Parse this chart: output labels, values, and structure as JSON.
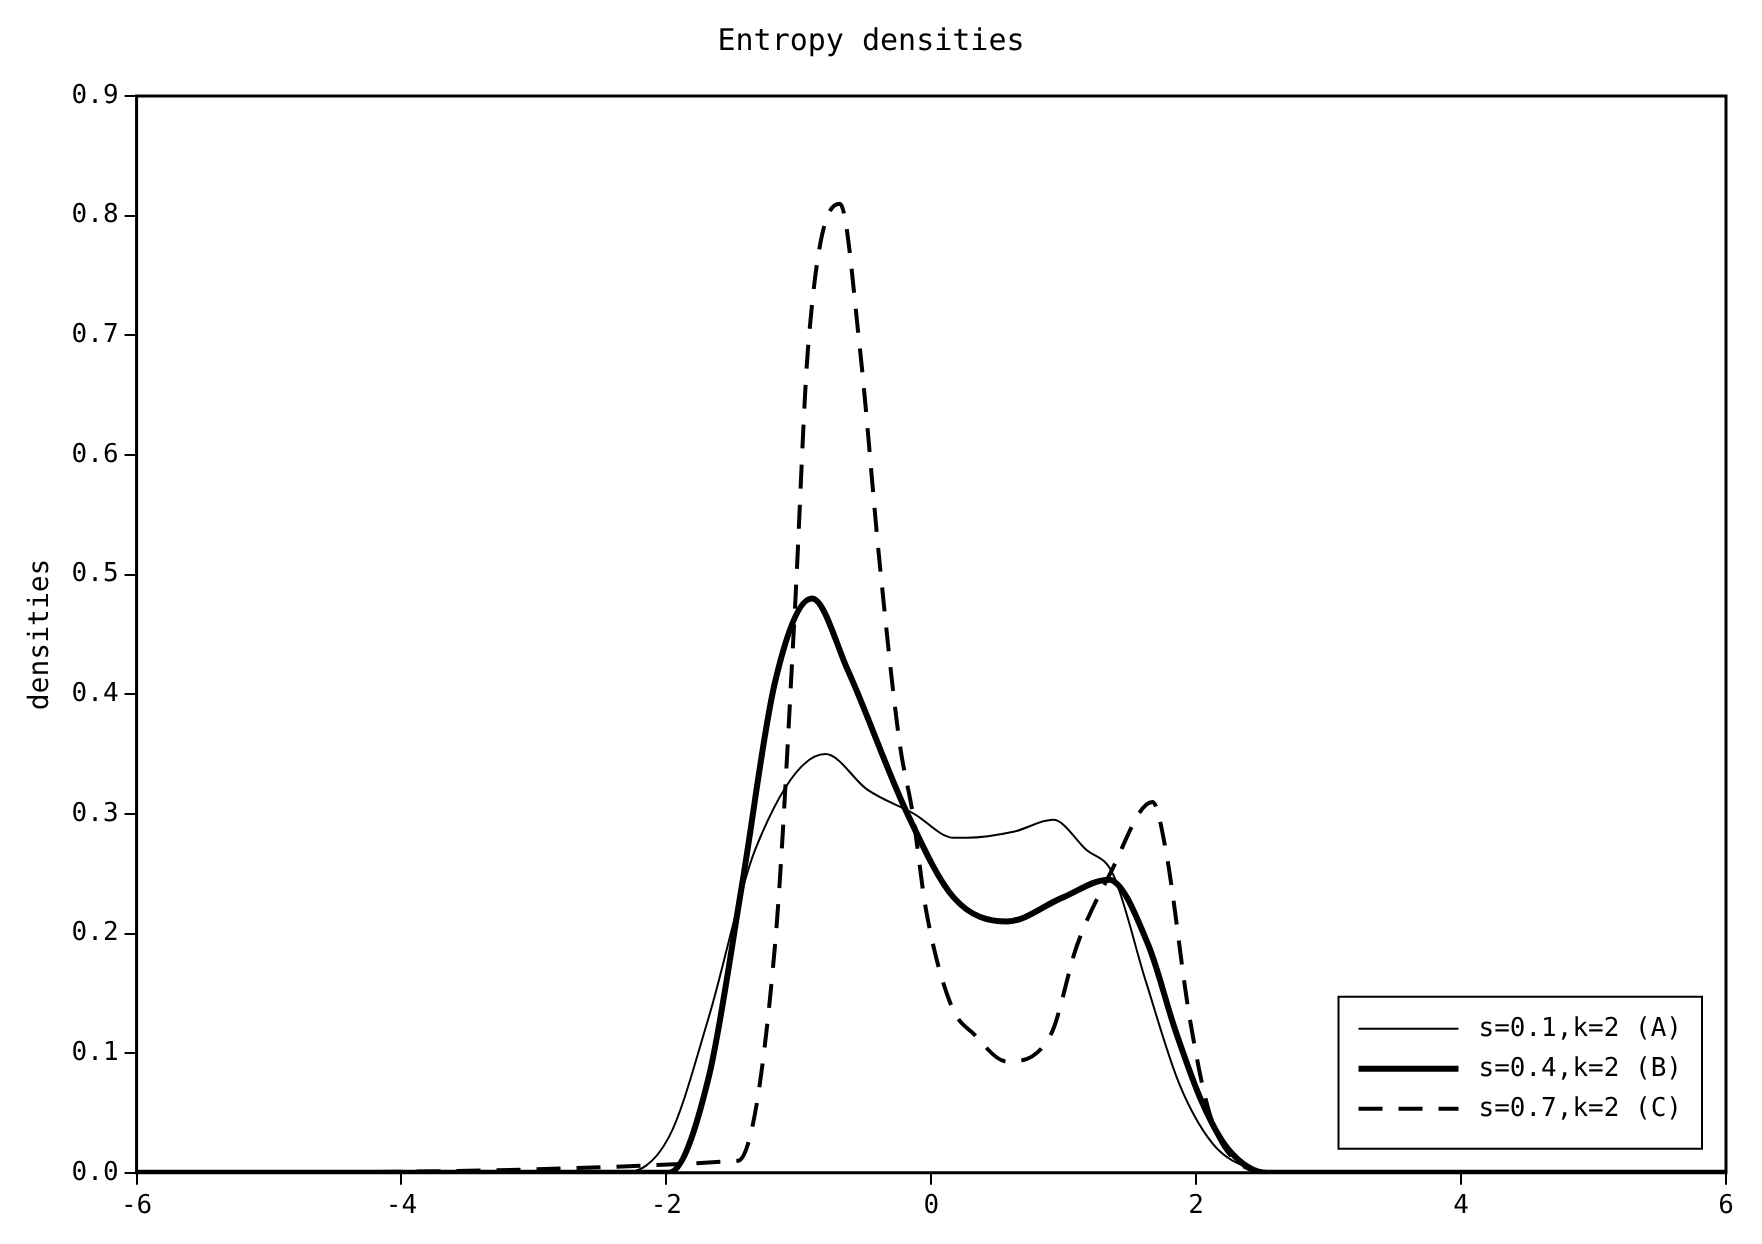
{
  "chart_data": {
    "type": "line",
    "title": "Entropy densities",
    "ylabel": "densities",
    "xlim": [
      -6,
      6
    ],
    "xticks": [
      -6,
      -4,
      -2,
      0,
      2,
      4,
      6
    ],
    "ylim": [
      0,
      0.9
    ],
    "yticks": [
      {
        "value": 0,
        "label": "0.0"
      },
      0.1,
      0.2,
      0.3,
      0.4,
      0.5,
      0.6,
      0.7,
      0.8,
      0.9
    ],
    "grid": false,
    "legend": "bottom right",
    "marker": "none",
    "series": [
      {
        "name": "s=0.1,k=2 (A)",
        "color": "#000000",
        "line_style": "solid",
        "x": [
          -6,
          -2.33,
          -1.98,
          -1.68,
          -1.33,
          -0.8,
          -0.48,
          -0.13,
          0.17,
          0.27,
          0.62,
          0.92,
          1.17,
          1.37,
          1.62,
          1.87,
          2.12,
          2.37,
          2.6,
          6
        ],
        "values": [
          0,
          0,
          0.03,
          0.13,
          0.27,
          0.35,
          0.32,
          0.3,
          0.28,
          0.28,
          0.285,
          0.295,
          0.27,
          0.25,
          0.16,
          0.075,
          0.025,
          0.005,
          0,
          0
        ]
      },
      {
        "name": "s=0.4,k=2 (B)",
        "color": "#000000",
        "line_style": "solid",
        "x": [
          -6,
          -1.98,
          -1.68,
          -1.43,
          -1.18,
          -0.9,
          -0.63,
          -0.18,
          0.17,
          0.57,
          0.99,
          1.34,
          1.64,
          1.84,
          2.04,
          2.24,
          2.54,
          6
        ],
        "values": [
          0,
          0,
          0.08,
          0.24,
          0.41,
          0.48,
          0.42,
          0.3,
          0.23,
          0.21,
          0.23,
          0.245,
          0.19,
          0.12,
          0.06,
          0.02,
          0,
          0
        ]
      },
      {
        "name": "s=0.7,k=2 (C)",
        "color": "#000000",
        "line_style": "dashed",
        "x": [
          -6,
          -1.46,
          -1.18,
          -1.03,
          -0.93,
          -0.69,
          -0.54,
          -0.39,
          -0.24,
          -0.14,
          -0.04,
          0.15,
          0.33,
          0.57,
          0.9,
          1.1,
          1.35,
          1.67,
          1.77,
          1.95,
          2.1,
          2.3,
          2.6,
          6
        ],
        "values": [
          0,
          0.01,
          0.19,
          0.47,
          0.69,
          0.81,
          0.69,
          0.51,
          0.36,
          0.3,
          0.22,
          0.14,
          0.115,
          0.093,
          0.115,
          0.19,
          0.25,
          0.31,
          0.27,
          0.13,
          0.05,
          0.01,
          0,
          0
        ]
      }
    ]
  }
}
